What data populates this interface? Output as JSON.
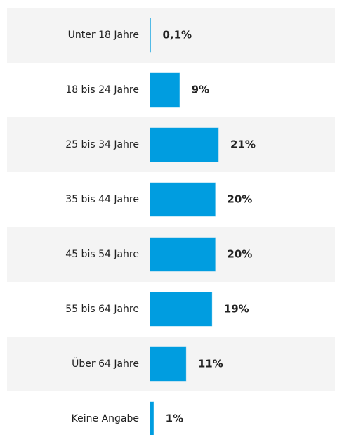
{
  "chart_data": {
    "type": "bar",
    "orientation": "horizontal",
    "categories": [
      "Unter 18 Jahre",
      "18 bis 24 Jahre",
      "25 bis 34 Jahre",
      "35 bis 44 Jahre",
      "45 bis 54 Jahre",
      "55 bis 64 Jahre",
      "Über 64 Jahre",
      "Keine Angabe"
    ],
    "values": [
      0.1,
      9,
      21,
      20,
      20,
      19,
      11,
      1
    ],
    "value_labels": [
      "0,1%",
      "9%",
      "21%",
      "20%",
      "20%",
      "19%",
      "11%",
      "1%"
    ],
    "color": "#009de0"
  }
}
